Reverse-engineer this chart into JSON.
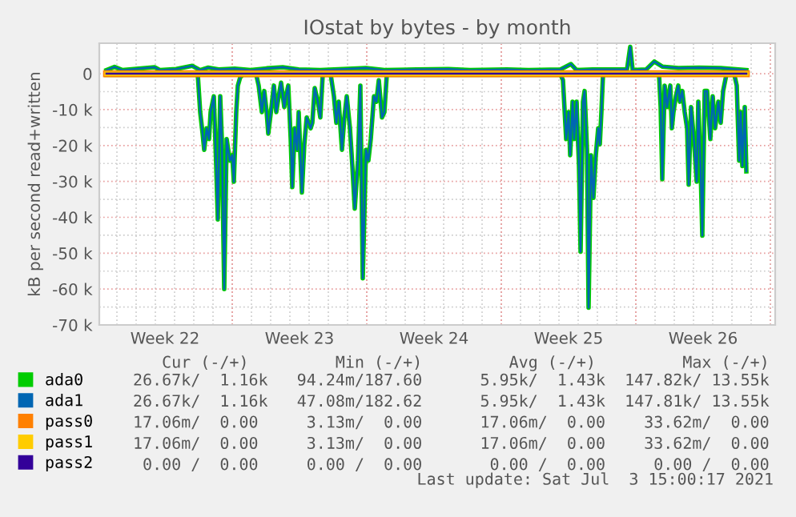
{
  "chart_data": {
    "type": "line",
    "title": "IOstat by bytes - by month",
    "ylabel": "kB per second read+written",
    "x": [
      "2021-05-31T11:00",
      "2021-06-05T01:00",
      "2021-06-05T05:00",
      "2021-06-05T08:00",
      "2021-06-05T11:00",
      "2021-06-05T13:00",
      "2021-06-05T16:00",
      "2021-06-05T19:00",
      "2021-06-05T21:00",
      "2021-06-06T01:00",
      "2021-06-06T04:00",
      "2021-06-06T06:00",
      "2021-06-06T09:00",
      "2021-06-06T11:00",
      "2021-06-06T14:00",
      "2021-06-06T17:00",
      "2021-06-06T21:00",
      "2021-06-07T00:00",
      "2021-06-07T02:00",
      "2021-06-07T05:00",
      "2021-06-07T07:00",
      "2021-06-07T10:00",
      "2021-06-07T13:00",
      "2021-06-08T06:00",
      "2021-06-08T09:00",
      "2021-06-08T13:00",
      "2021-06-08T16:00",
      "2021-06-08T19:00",
      "2021-06-08T21:00",
      "2021-06-09T01:00",
      "2021-06-09T04:00",
      "2021-06-09T07:00",
      "2021-06-09T10:00",
      "2021-06-09T13:00",
      "2021-06-09T17:00",
      "2021-06-09T19:00",
      "2021-06-09T22:00",
      "2021-06-10T01:00",
      "2021-06-10T03:00",
      "2021-06-10T06:00",
      "2021-06-10T09:00",
      "2021-06-10T11:00",
      "2021-06-10T15:00",
      "2021-06-10T18:00",
      "2021-06-10T21:00",
      "2021-06-11T02:00",
      "2021-06-11T04:00",
      "2021-06-11T07:00",
      "2021-06-11T11:00",
      "2021-06-11T14:00",
      "2021-06-11T17:00",
      "2021-06-12T03:00",
      "2021-06-12T07:00",
      "2021-06-12T10:00",
      "2021-06-12T13:00",
      "2021-06-12T17:00",
      "2021-06-12T20:00",
      "2021-06-12T23:00",
      "2021-06-13T03:00",
      "2021-06-13T06:00",
      "2021-06-13T09:00",
      "2021-06-13T13:00",
      "2021-06-13T16:00",
      "2021-06-13T19:00",
      "2021-06-13T23:00",
      "2021-06-14T02:00",
      "2021-06-14T05:00",
      "2021-06-14T09:00",
      "2021-06-14T12:00",
      "2021-06-14T15:00",
      "2021-06-14T19:00",
      "2021-06-14T22:00",
      "2021-06-15T01:00",
      "2021-06-24T02:00",
      "2021-06-24T05:00",
      "2021-06-24T09:00",
      "2021-06-24T12:00",
      "2021-06-24T14:00",
      "2021-06-24T17:00",
      "2021-06-24T19:00",
      "2021-06-24T22:00",
      "2021-06-25T01:00",
      "2021-06-25T03:00",
      "2021-06-25T06:00",
      "2021-06-25T08:00",
      "2021-06-25T11:00",
      "2021-06-25T13:00",
      "2021-06-25T16:00",
      "2021-06-25T19:00",
      "2021-06-25T22:00",
      "2021-06-26T01:00",
      "2021-06-26T03:00",
      "2021-06-26T05:00",
      "2021-06-26T07:00",
      "2021-06-29T05:00",
      "2021-06-29T07:00",
      "2021-06-29T09:00",
      "2021-06-29T12:00",
      "2021-06-29T15:00",
      "2021-06-29T19:00",
      "2021-06-29T21:00",
      "2021-06-29T23:00",
      "2021-06-30T02:00",
      "2021-06-30T05:00",
      "2021-06-30T07:00",
      "2021-06-30T10:00",
      "2021-06-30T13:00",
      "2021-06-30T16:00",
      "2021-06-30T18:00",
      "2021-06-30T21:00",
      "2021-07-01T01:00",
      "2021-07-01T04:00",
      "2021-07-01T06:00",
      "2021-07-01T09:00",
      "2021-07-01T11:00",
      "2021-07-01T14:00",
      "2021-07-01T17:00",
      "2021-07-01T21:00",
      "2021-07-02T00:00",
      "2021-07-02T03:00",
      "2021-07-02T07:00",
      "2021-07-02T10:00",
      "2021-07-02T13:00",
      "2021-07-02T17:00",
      "2021-07-03T03:00",
      "2021-07-03T06:00",
      "2021-07-03T09:00",
      "2021-07-03T11:00",
      "2021-07-03T13:00",
      "2021-07-03T16:00",
      "2021-07-03T18:00"
    ],
    "series": [
      {
        "name": "ada0",
        "color": "#00cc00",
        "values": [
          -300,
          -300,
          -300,
          -10700,
          -16700,
          -21200,
          -15200,
          -18200,
          -10700,
          -6300,
          -25700,
          -40600,
          -6300,
          -18200,
          -60000,
          -18200,
          -24200,
          -22700,
          -30100,
          -10700,
          -3300,
          -1000,
          -300,
          -300,
          -3300,
          -10700,
          -4800,
          -10700,
          -16700,
          -9300,
          -3300,
          -10700,
          -6300,
          -2500,
          -9300,
          -6300,
          -3300,
          -18200,
          -31600,
          -15200,
          -21200,
          -10700,
          -33100,
          -19700,
          -12200,
          -15200,
          -13700,
          -4000,
          -7800,
          -12200,
          -300,
          -300,
          -6300,
          -13700,
          -7800,
          -21200,
          -12200,
          -6300,
          -15200,
          -25700,
          -37600,
          -24200,
          -3300,
          -57000,
          -21200,
          -24200,
          -18200,
          -6300,
          -7800,
          -1800,
          -12200,
          -10700,
          -300,
          -300,
          -1800,
          -18200,
          -10700,
          -22700,
          -7800,
          -18200,
          -7800,
          -25700,
          -49600,
          -7800,
          -4800,
          -21200,
          -65200,
          -22700,
          -34600,
          -22700,
          -15200,
          -19700,
          -10700,
          -300,
          -300,
          -9300,
          -29400,
          -3300,
          -9300,
          -3300,
          -15200,
          -10700,
          -6300,
          -3300,
          -7800,
          -4800,
          -10700,
          -15200,
          -30900,
          -9300,
          -19700,
          -30100,
          -7800,
          -27200,
          -45100,
          -4800,
          -4800,
          -18200,
          -6300,
          -15200,
          -7800,
          -13700,
          -4800,
          -300,
          -300,
          -3300,
          -24200,
          -10700,
          -25700,
          -9300,
          -27200
        ]
      },
      {
        "color": "#00cc00",
        "x": [
          "2021-05-31T11:00",
          "2021-05-31T21:00",
          "2021-06-01T07:00",
          "2021-06-02T03:00",
          "2021-06-02T23:00",
          "2021-06-03T06:00",
          "2021-06-04T02:00",
          "2021-06-04T22:00",
          "2021-06-05T08:00",
          "2021-06-05T18:00",
          "2021-06-06T07:00",
          "2021-06-07T03:00",
          "2021-06-07T23:00",
          "2021-06-08T19:00",
          "2021-06-09T15:00",
          "2021-06-10T11:00",
          "2021-06-11T14:00",
          "2021-06-13T23:00",
          "2021-06-14T22:00",
          "2021-06-16T14:00",
          "2021-06-18T06:00",
          "2021-06-19T09:00",
          "2021-06-21T07:00",
          "2021-06-22T10:00",
          "2021-06-24T02:00",
          "2021-06-24T15:00",
          "2021-06-24T22:00",
          "2021-06-25T18:00",
          "2021-06-27T13:00",
          "2021-06-27T17:00",
          "2021-06-27T20:00",
          "2021-06-28T13:00",
          "2021-06-28T23:00",
          "2021-06-29T09:00",
          "2021-06-30T05:00",
          "2021-07-01T07:00",
          "2021-07-02T10:00",
          "2021-07-03T18:00"
        ],
        "values": [
          1000,
          1900,
          1000,
          1400,
          1800,
          1000,
          1300,
          2200,
          1000,
          1700,
          1200,
          1400,
          1000,
          1500,
          1800,
          1200,
          1000,
          1600,
          1000,
          1200,
          1300,
          1000,
          1200,
          1000,
          1200,
          2700,
          1000,
          1200,
          1200,
          7500,
          1000,
          1200,
          3400,
          2000,
          1600,
          1700,
          1600,
          1000
        ]
      },
      {
        "name": "ada1",
        "color": "#0066b3",
        "values": [
          -300,
          -300,
          -300,
          -10700,
          -16700,
          -21200,
          -15200,
          -18200,
          -10700,
          -6300,
          -25700,
          -40600,
          -6300,
          -18200,
          -60000,
          -18200,
          -24200,
          -22700,
          -30100,
          -10700,
          -3300,
          -1000,
          -300,
          -300,
          -3300,
          -10700,
          -4800,
          -10700,
          -16700,
          -9300,
          -3300,
          -10700,
          -6300,
          -2500,
          -9300,
          -6300,
          -3300,
          -18200,
          -31600,
          -15200,
          -21200,
          -10700,
          -33100,
          -19700,
          -12200,
          -15200,
          -13700,
          -4000,
          -7800,
          -12200,
          -300,
          -300,
          -6300,
          -13700,
          -7800,
          -21200,
          -12200,
          -6300,
          -15200,
          -25700,
          -37600,
          -24200,
          -3300,
          -57000,
          -21200,
          -24200,
          -18200,
          -6300,
          -7800,
          -1800,
          -12200,
          -10700,
          -300,
          -300,
          -1800,
          -18200,
          -10700,
          -22700,
          -7800,
          -18200,
          -7800,
          -25700,
          -49600,
          -7800,
          -4800,
          -21200,
          -65200,
          -22700,
          -34600,
          -22700,
          -15200,
          -19700,
          -10700,
          -300,
          -300,
          -9300,
          -29400,
          -3300,
          -9300,
          -3300,
          -15200,
          -10700,
          -6300,
          -3300,
          -7800,
          -4800,
          -10700,
          -15200,
          -30900,
          -9300,
          -19700,
          -30100,
          -7800,
          -27200,
          -45100,
          -4800,
          -4800,
          -18200,
          -6300,
          -15200,
          -7800,
          -13700,
          -4800,
          -300,
          -300,
          -3300,
          -24200,
          -10700,
          -25700,
          -9300,
          -27200
        ]
      },
      {
        "color": "#0066b3",
        "x": [
          "2021-05-31T11:00",
          "2021-05-31T21:00",
          "2021-06-01T07:00",
          "2021-06-02T03:00",
          "2021-06-02T23:00",
          "2021-06-03T06:00",
          "2021-06-04T02:00",
          "2021-06-04T22:00",
          "2021-06-05T08:00",
          "2021-06-05T18:00",
          "2021-06-06T07:00",
          "2021-06-07T03:00",
          "2021-06-07T23:00",
          "2021-06-08T19:00",
          "2021-06-09T15:00",
          "2021-06-10T11:00",
          "2021-06-11T14:00",
          "2021-06-13T23:00",
          "2021-06-14T22:00",
          "2021-06-16T14:00",
          "2021-06-18T06:00",
          "2021-06-19T09:00",
          "2021-06-21T07:00",
          "2021-06-22T10:00",
          "2021-06-24T02:00",
          "2021-06-24T15:00",
          "2021-06-24T22:00",
          "2021-06-25T18:00",
          "2021-06-27T13:00",
          "2021-06-27T17:00",
          "2021-06-27T20:00",
          "2021-06-28T13:00",
          "2021-06-28T23:00",
          "2021-06-29T09:00",
          "2021-06-30T05:00",
          "2021-07-01T07:00",
          "2021-07-02T10:00",
          "2021-07-03T18:00"
        ],
        "values": [
          1000,
          1900,
          1000,
          1400,
          1800,
          1000,
          1300,
          2200,
          1000,
          1700,
          1200,
          1400,
          1000,
          1500,
          1800,
          1200,
          1000,
          1600,
          1000,
          1200,
          1300,
          1000,
          1200,
          1000,
          1200,
          2700,
          1000,
          1200,
          1200,
          7500,
          1000,
          1200,
          3400,
          2000,
          1600,
          1700,
          1600,
          1000
        ]
      },
      {
        "name": "pass0",
        "color": "#ff8000",
        "x": [
          "2021-05-31T11:00",
          "2021-07-03T18:00"
        ],
        "values": [
          0,
          0
        ]
      },
      {
        "name": "pass1",
        "color": "#ffcc00",
        "x": [
          "2021-05-31T11:00",
          "2021-07-03T18:00"
        ],
        "values": [
          0,
          0
        ]
      },
      {
        "name": "pass2",
        "color": "#330099",
        "x": [
          "2021-05-31T11:00",
          "2021-07-03T18:00"
        ],
        "values": [
          0,
          0
        ]
      }
    ],
    "xlim": [
      "2021-05-31T02:00",
      "2021-07-05T06:00"
    ],
    "xticks": [
      {
        "value": "2021-06-03T12:00",
        "label": "Week 22"
      },
      {
        "value": "2021-06-10T12:00",
        "label": "Week 23"
      },
      {
        "value": "2021-06-17T12:00",
        "label": "Week 24"
      },
      {
        "value": "2021-06-24T12:00",
        "label": "Week 25"
      },
      {
        "value": "2021-07-01T12:00",
        "label": "Week 26"
      }
    ],
    "ylim": [
      -70000,
      8500
    ],
    "yticks": [
      {
        "value": 0,
        "label": "0"
      },
      {
        "value": -10000,
        "label": "-10 k"
      },
      {
        "value": -20000,
        "label": "-20 k"
      },
      {
        "value": -30000,
        "label": "-30 k"
      },
      {
        "value": -40000,
        "label": "-40 k"
      },
      {
        "value": -50000,
        "label": "-50 k"
      },
      {
        "value": -60000,
        "label": "-60 k"
      },
      {
        "value": -70000,
        "label": "-70 k"
      }
    ],
    "grid": true,
    "legend": "bottom",
    "marker": "none",
    "line_style": "solid",
    "annotations": [
      "   Cur (-/+)         Min (-/+)         Avg (-/+)         Max (-/+)",
      "26.67k/  1.16k   94.24m/187.60      5.95k/  1.43k  147.82k/ 13.55k",
      "26.67k/  1.16k   47.08m/182.62      5.95k/  1.43k  147.81k/ 13.55k",
      "17.06m/  0.00     3.13m/  0.00      17.06m/  0.00    33.62m/  0.00",
      "17.06m/  0.00     3.13m/  0.00      17.06m/  0.00    33.62m/  0.00",
      " 0.00 /  0.00     0.00 /  0.00       0.00 /  0.00     0.00 /  0.00",
      "Last update: Sat Jul  3 15:00:17 2021"
    ]
  }
}
